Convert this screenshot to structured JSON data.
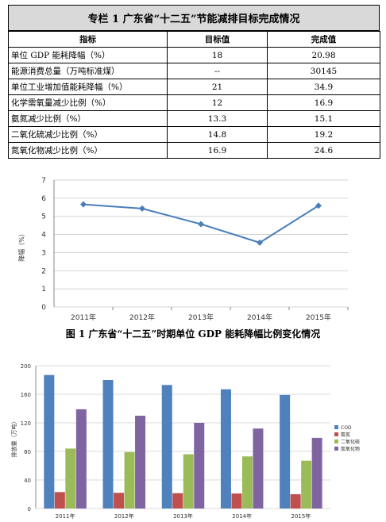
{
  "table": {
    "title": "专栏 1   广东省“十二五”节能减排目标完成情况",
    "headers": [
      "指标",
      "目标值",
      "完成值"
    ],
    "rows": [
      [
        "单位 GDP 能耗降幅（%）",
        "18",
        "20.98"
      ],
      [
        "能源消费总量（万吨标准煤）",
        "--",
        "30145"
      ],
      [
        "单位工业增加值能耗降幅（%）",
        "21",
        "34.9"
      ],
      [
        "化学需氧量减少比例（%）",
        "12",
        "16.9"
      ],
      [
        "氨氮减少比例（%）",
        "13.3",
        "15.1"
      ],
      [
        "二氧化硫减少比例（%）",
        "14.8",
        "19.2"
      ],
      [
        "氮氧化物减少比例（%）",
        "16.9",
        "24.6"
      ]
    ]
  },
  "chart_data": [
    {
      "type": "line",
      "title": "",
      "ylabel": "降幅（%）",
      "xlabel": "",
      "categories": [
        "2011年",
        "2012年",
        "2013年",
        "2014年",
        "2015年"
      ],
      "ylim": [
        0,
        7
      ],
      "yticks": [
        0,
        1,
        2,
        3,
        4,
        5,
        6,
        7
      ],
      "series": [
        {
          "values": [
            5.66,
            5.43,
            4.57,
            3.55,
            5.59
          ],
          "color": "#4a7ebb"
        }
      ],
      "grid": true
    },
    {
      "type": "bar",
      "title": "",
      "ylabel": "排放量（万吨）",
      "xlabel": "",
      "categories": [
        "2011年",
        "2012年",
        "2013年",
        "2014年",
        "2015年"
      ],
      "ylim": [
        0,
        200
      ],
      "yticks": [
        0,
        40,
        80,
        120,
        160,
        200
      ],
      "legend_position": "right",
      "series": [
        {
          "name": "COD",
          "values": [
            187,
            180,
            173,
            167,
            159
          ],
          "color": "#4f81bd"
        },
        {
          "name": "氨氮",
          "values": [
            23,
            22,
            21.5,
            21,
            20
          ],
          "color": "#c0504d"
        },
        {
          "name": "二氧化硫",
          "values": [
            84,
            79,
            76,
            73,
            67
          ],
          "color": "#9bbb59"
        },
        {
          "name": "氮氧化物",
          "values": [
            139,
            130,
            120,
            112,
            99
          ],
          "color": "#8064a2"
        }
      ]
    }
  ],
  "caption": "图 1   广东省“十二五”时期单位 GDP 能耗降幅比例变化情况"
}
